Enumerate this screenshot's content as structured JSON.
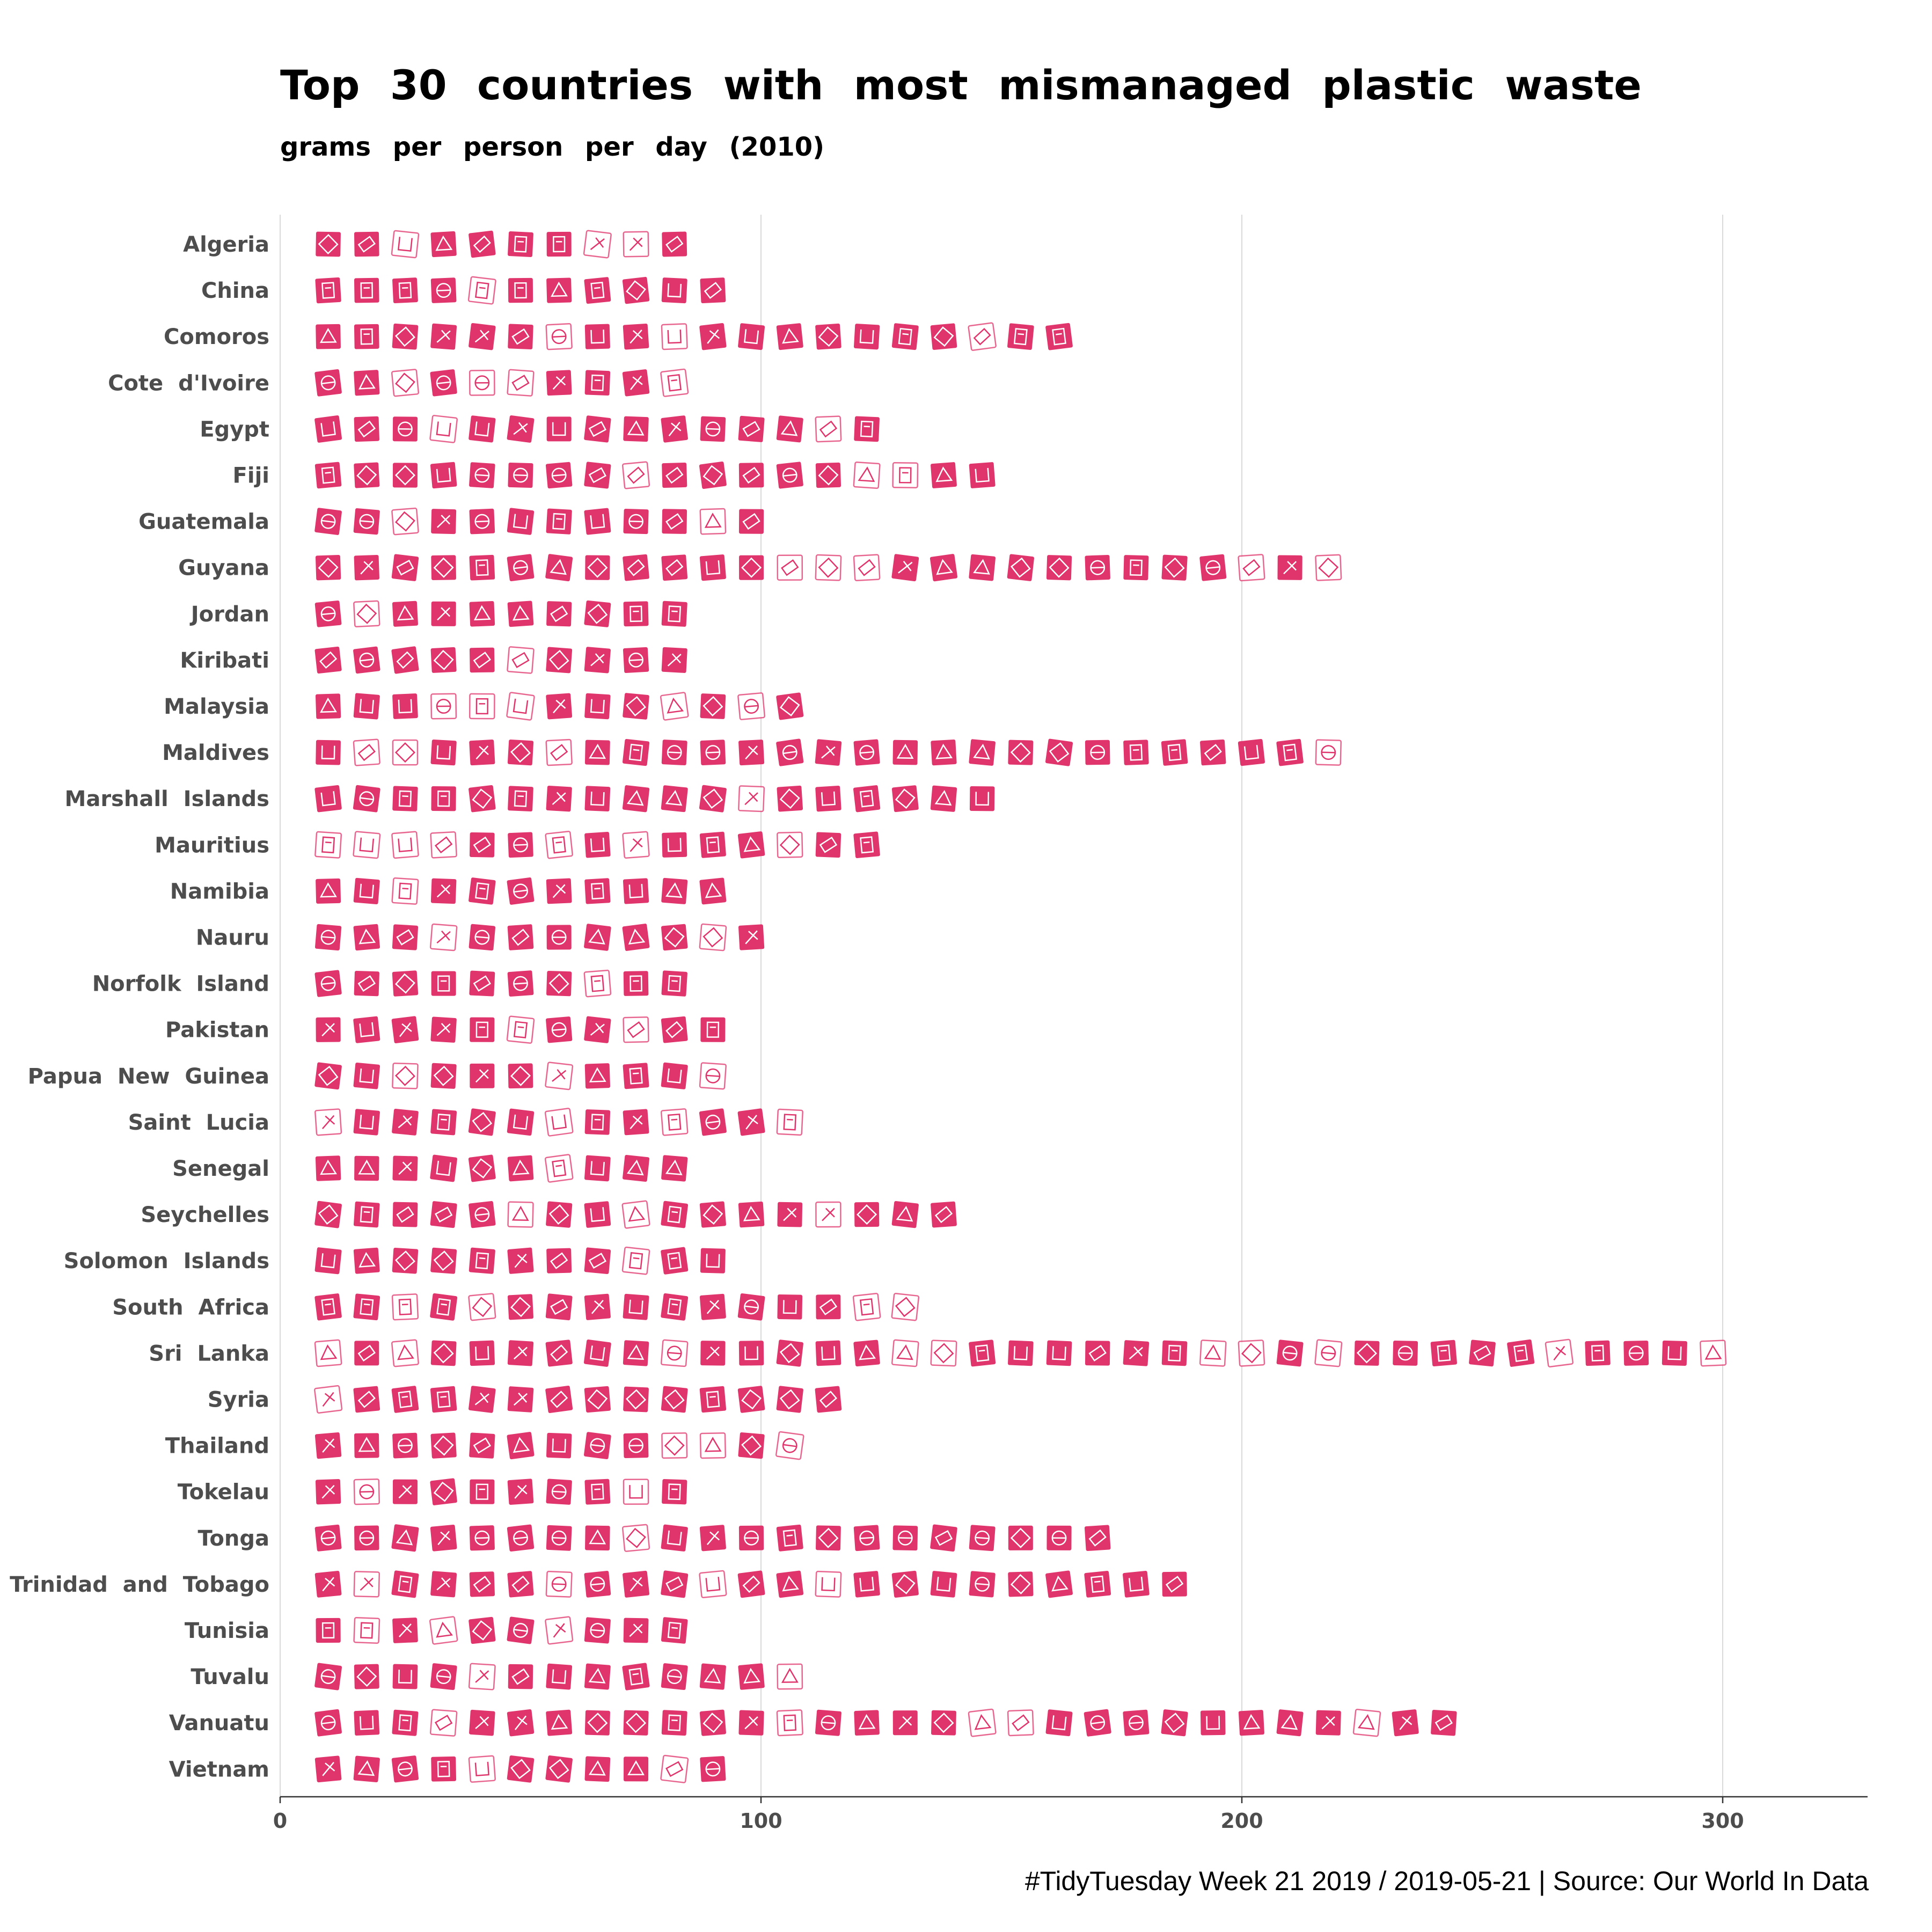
{
  "colors": {
    "icon": "#e0356c",
    "icon_light": "#e0356c",
    "grid": "#d9d9d9",
    "text": "#000000",
    "label": "#4d4d4d"
  },
  "chart_data": {
    "type": "pictogram-bar",
    "orientation": "horizontal",
    "title": "Top 30 countries with most mismanaged plastic waste",
    "subtitle": "grams per person per day (2010)",
    "caption": "#TidyTuesday Week 21 2019 / 2019-05-21 | Source: Our World In Data",
    "xlabel": "",
    "ylabel": "",
    "xlim": [
      0,
      330
    ],
    "xticks": [
      0,
      100,
      200,
      300
    ],
    "grid": "vertical major",
    "icon_unit": "8 grams per icon",
    "categories": [
      "Algeria",
      "China",
      "Comoros",
      "Cote d'Ivoire",
      "Egypt",
      "Fiji",
      "Guatemala",
      "Guyana",
      "Jordan",
      "Kiribati",
      "Malaysia",
      "Maldives",
      "Marshall Islands",
      "Mauritius",
      "Namibia",
      "Nauru",
      "Norfolk Island",
      "Pakistan",
      "Papua New Guinea",
      "Saint Lucia",
      "Senegal",
      "Seychelles",
      "Solomon Islands",
      "South Africa",
      "Sri Lanka",
      "Syria",
      "Thailand",
      "Tokelau",
      "Tonga",
      "Trinidad and Tobago",
      "Tunisia",
      "Tuvalu",
      "Vanuatu",
      "Vietnam"
    ],
    "values": [
      82,
      90,
      162,
      82,
      122,
      146,
      98,
      218,
      82,
      82,
      106,
      218,
      146,
      122,
      90,
      98,
      82,
      90,
      90,
      106,
      82,
      138,
      90,
      130,
      298,
      114,
      106,
      82,
      170,
      186,
      82,
      106,
      242,
      90
    ]
  }
}
